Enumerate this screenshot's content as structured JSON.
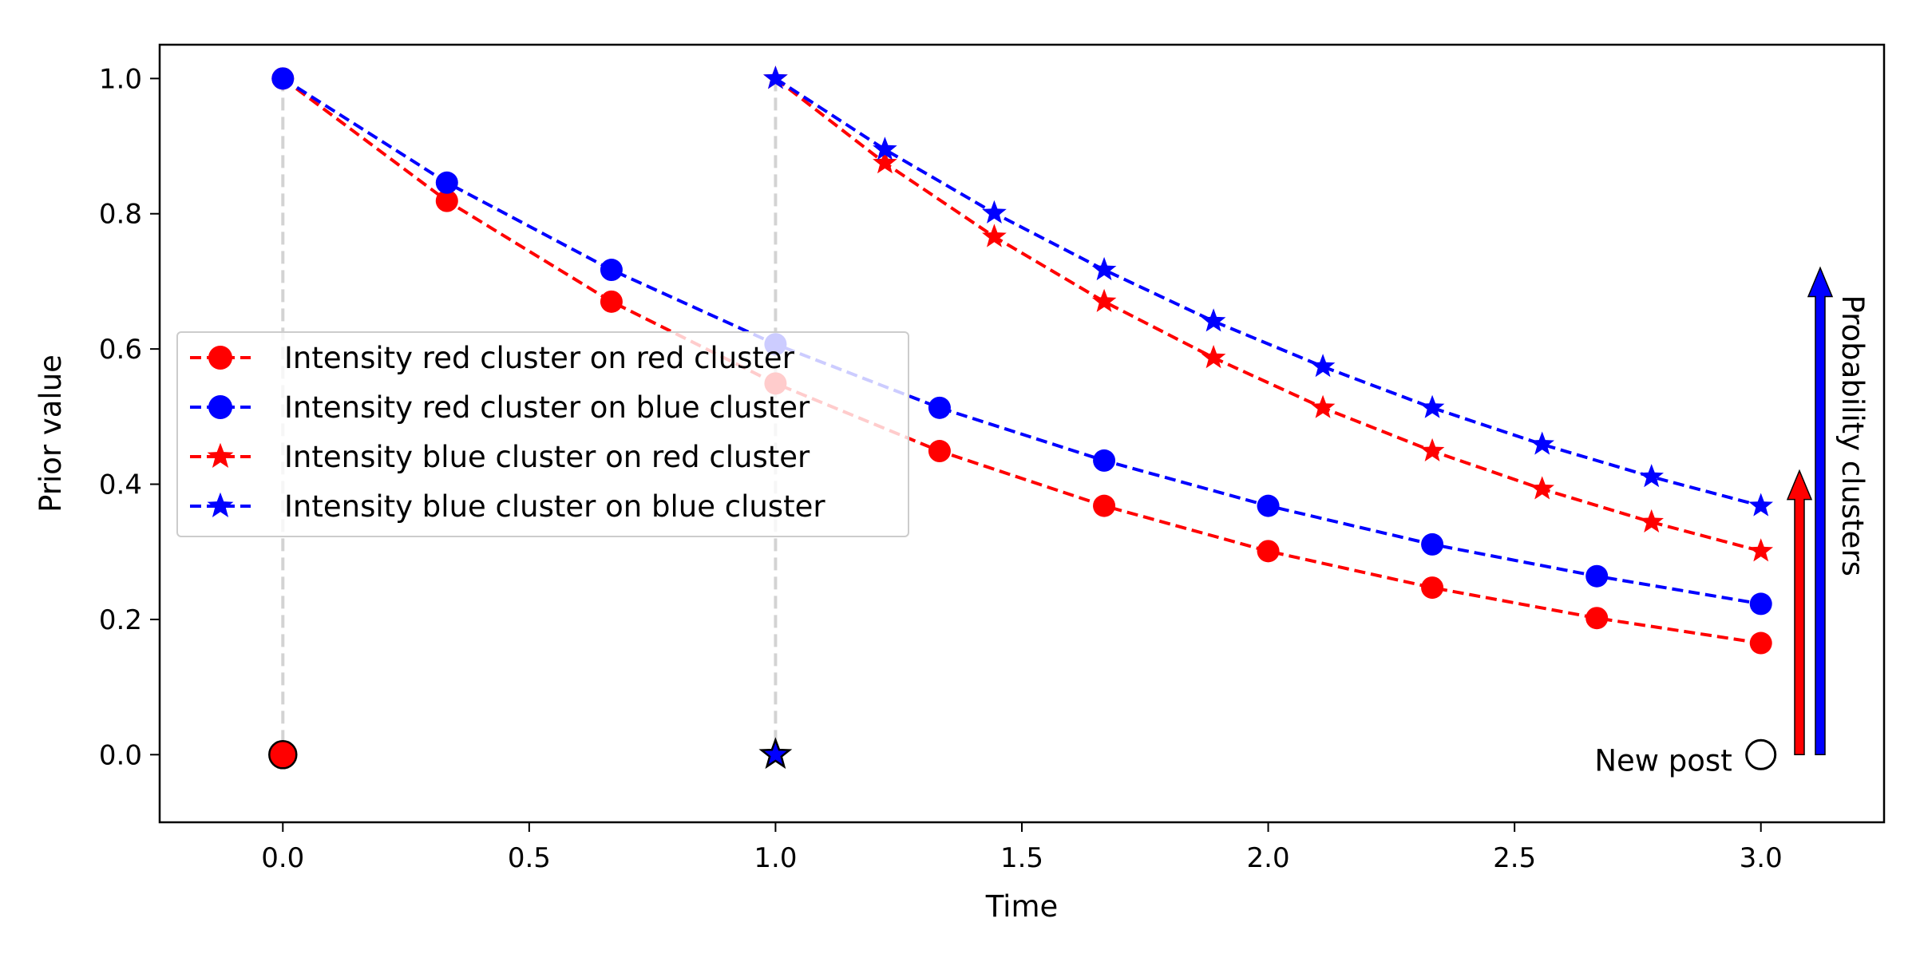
{
  "chart_data": {
    "type": "line",
    "xlabel": "Time",
    "ylabel": "Prior value",
    "xlim": [
      -0.25,
      3.25
    ],
    "ylim": [
      -0.1,
      1.05
    ],
    "xticks": [
      0.0,
      0.5,
      1.0,
      1.5,
      2.0,
      2.5,
      3.0
    ],
    "xtick_labels": [
      "0.0",
      "0.5",
      "1.0",
      "1.5",
      "2.0",
      "2.5",
      "3.0"
    ],
    "yticks": [
      0.0,
      0.2,
      0.4,
      0.6,
      0.8,
      1.0
    ],
    "ytick_labels": [
      "0.0",
      "0.2",
      "0.4",
      "0.6",
      "0.8",
      "1.0"
    ],
    "grid": false,
    "legend_position": "center-left",
    "series": [
      {
        "name": "Intensity red cluster on red cluster",
        "color": "#ff0000",
        "marker": "circle",
        "linestyle": "dashed",
        "x": [
          0.0,
          0.333,
          0.667,
          1.0,
          1.333,
          1.667,
          2.0,
          2.333,
          2.667,
          3.0
        ],
        "y": [
          1.0,
          0.819,
          0.67,
          0.549,
          0.449,
          0.368,
          0.301,
          0.247,
          0.202,
          0.165
        ]
      },
      {
        "name": "Intensity red cluster on blue cluster",
        "color": "#0000ff",
        "marker": "circle",
        "linestyle": "dashed",
        "x": [
          0.0,
          0.333,
          0.667,
          1.0,
          1.333,
          1.667,
          2.0,
          2.333,
          2.667,
          3.0
        ],
        "y": [
          1.0,
          0.846,
          0.717,
          0.607,
          0.513,
          0.435,
          0.368,
          0.311,
          0.264,
          0.223
        ]
      },
      {
        "name": "Intensity blue cluster on red cluster",
        "color": "#ff0000",
        "marker": "star",
        "linestyle": "dashed",
        "x": [
          1.0,
          1.222,
          1.444,
          1.667,
          1.889,
          2.111,
          2.333,
          2.556,
          2.778,
          3.0
        ],
        "y": [
          1.0,
          0.875,
          0.766,
          0.67,
          0.587,
          0.513,
          0.449,
          0.393,
          0.344,
          0.301
        ]
      },
      {
        "name": "Intensity blue cluster on blue cluster",
        "color": "#0000ff",
        "marker": "star",
        "linestyle": "dashed",
        "x": [
          1.0,
          1.222,
          1.444,
          1.667,
          1.889,
          2.111,
          2.333,
          2.556,
          2.778,
          3.0
        ],
        "y": [
          1.0,
          0.895,
          0.801,
          0.717,
          0.641,
          0.574,
          0.513,
          0.459,
          0.411,
          0.368
        ]
      }
    ],
    "events": [
      {
        "x": 0.0,
        "y": 0.0,
        "marker": "circle",
        "color": "#ff0000"
      },
      {
        "x": 1.0,
        "y": 0.0,
        "marker": "star",
        "color": "#0000ff"
      }
    ],
    "new_post": {
      "label": "New post",
      "x": 3.0,
      "y": 0.0
    },
    "probability_arrows": {
      "label": "Probability clusters",
      "bars": [
        {
          "color": "#ff0000",
          "value": 0.42
        },
        {
          "color": "#0000ff",
          "value": 0.72
        }
      ]
    }
  }
}
